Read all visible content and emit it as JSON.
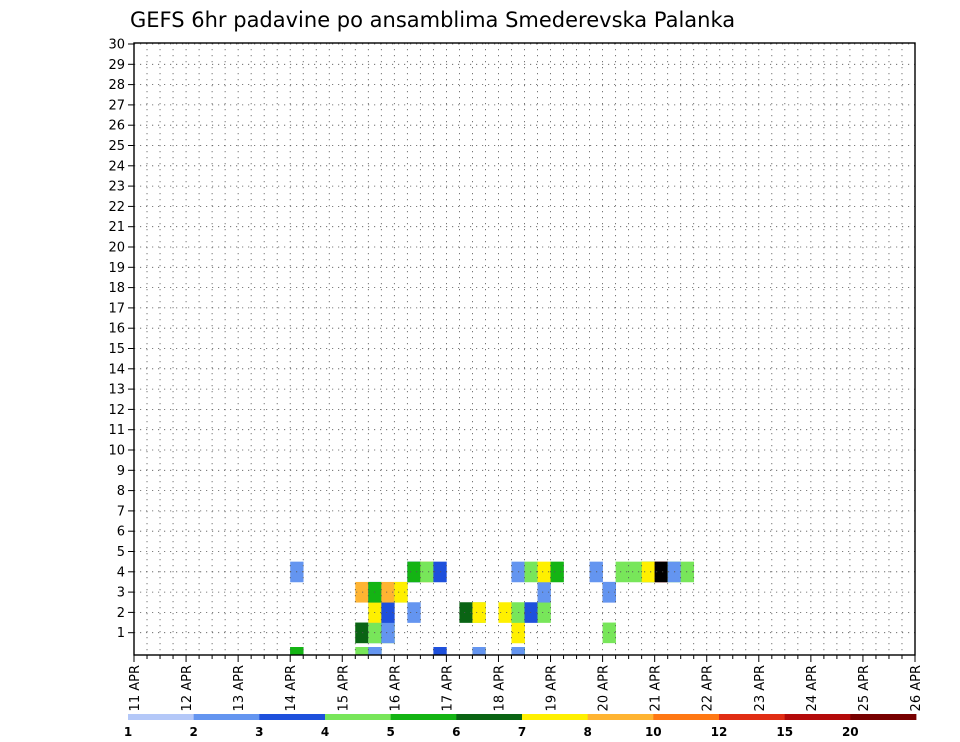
{
  "chart_data": {
    "type": "heatmap",
    "title": "GEFS 6hr padavine po ansamblima Smederevska Palanka",
    "x_tick_labels": [
      "11 APR",
      "12 APR",
      "13 APR",
      "14 APR",
      "15 APR",
      "16 APR",
      "17 APR",
      "18 APR",
      "19 APR",
      "20 APR",
      "21 APR",
      "22 APR",
      "23 APR",
      "24 APR",
      "25 APR",
      "26 APR"
    ],
    "y_tick_labels": [
      "1",
      "2",
      "3",
      "4",
      "5",
      "6",
      "7",
      "8",
      "9",
      "10",
      "11",
      "12",
      "13",
      "14",
      "15",
      "16",
      "17",
      "18",
      "19",
      "20",
      "21",
      "22",
      "23",
      "24",
      "25",
      "26",
      "27",
      "28",
      "29",
      "30"
    ],
    "x_unit": "6-hour steps from 11 APR 00Z",
    "steps_total": 60,
    "grid": "dotted",
    "colorbar": {
      "tick_labels": [
        "1",
        "2",
        "3",
        "4",
        "5",
        "6",
        "7",
        "8",
        "10",
        "12",
        "15",
        "20"
      ],
      "colors": [
        "#b4c8f8",
        "#6495f0",
        "#1e50dc",
        "#78e65a",
        "#14b414",
        "#0a6414",
        "#fff000",
        "#ffb432",
        "#ff7814",
        "#e12d14",
        "#b40a0a",
        "#780000"
      ]
    },
    "cells": [
      [
        12.0,
        0.0,
        1
      ],
      [
        17.0,
        0.0,
        3
      ],
      [
        18.0,
        0.0,
        4
      ],
      [
        18.0,
        0.0,
        1
      ],
      [
        23.0,
        0.0,
        2
      ],
      [
        26.0,
        0.0,
        6
      ],
      [
        26.0,
        0.0,
        1
      ],
      [
        29.0,
        0.0,
        3
      ],
      [
        29.0,
        0.0,
        4
      ],
      [
        29.0,
        0.0,
        1
      ],
      [
        12.0,
        0.0,
        4
      ],
      [
        12.0,
        0.0,
        4
      ],
      [
        17,
        1,
        3
      ],
      [
        17,
        1,
        5
      ],
      [
        18,
        1,
        1
      ],
      [
        18,
        1,
        3
      ],
      [
        18,
        1,
        3
      ],
      [
        19,
        1,
        4
      ],
      [
        19,
        1,
        1
      ],
      [
        29,
        1,
        6
      ],
      [
        29,
        1,
        6
      ],
      [
        36,
        1,
        3
      ],
      [
        18,
        2,
        1
      ],
      [
        18,
        2,
        6
      ],
      [
        19,
        2,
        2
      ],
      [
        21,
        2,
        1
      ],
      [
        25,
        2,
        5
      ],
      [
        26,
        2,
        3
      ],
      [
        26,
        2,
        6
      ],
      [
        28,
        2,
        6
      ],
      [
        29,
        2,
        3
      ],
      [
        30,
        2,
        2
      ],
      [
        31,
        2,
        3
      ],
      [
        17,
        3,
        7
      ],
      [
        18,
        3,
        2
      ],
      [
        18,
        3,
        4
      ],
      [
        19,
        3,
        7
      ],
      [
        20,
        3,
        3
      ],
      [
        20,
        3,
        6
      ],
      [
        31,
        3,
        1
      ],
      [
        36,
        3,
        2
      ],
      [
        36,
        3,
        1
      ],
      [
        12,
        4,
        1
      ],
      [
        21,
        4,
        2
      ],
      [
        21,
        4,
        4
      ],
      [
        22,
        4,
        7
      ],
      [
        22,
        4,
        3
      ],
      [
        23,
        4,
        2
      ],
      [
        29,
        4,
        1
      ],
      [
        30,
        4,
        3
      ],
      [
        31,
        4,
        6
      ],
      [
        32,
        4,
        4
      ],
      [
        35,
        4,
        1
      ],
      [
        37,
        4,
        3
      ],
      [
        38,
        4,
        3
      ],
      [
        39,
        4,
        4
      ],
      [
        39,
        4,
        6
      ],
      [
        40,
        4,
        10
      ],
      [
        40,
        4,
        12
      ],
      [
        41,
        4,
        3
      ],
      [
        41,
        4,
        1
      ],
      [
        42,
        4,
        3
      ]
    ],
    "cells_note": "[step, ensemble_row, color_index]"
  }
}
